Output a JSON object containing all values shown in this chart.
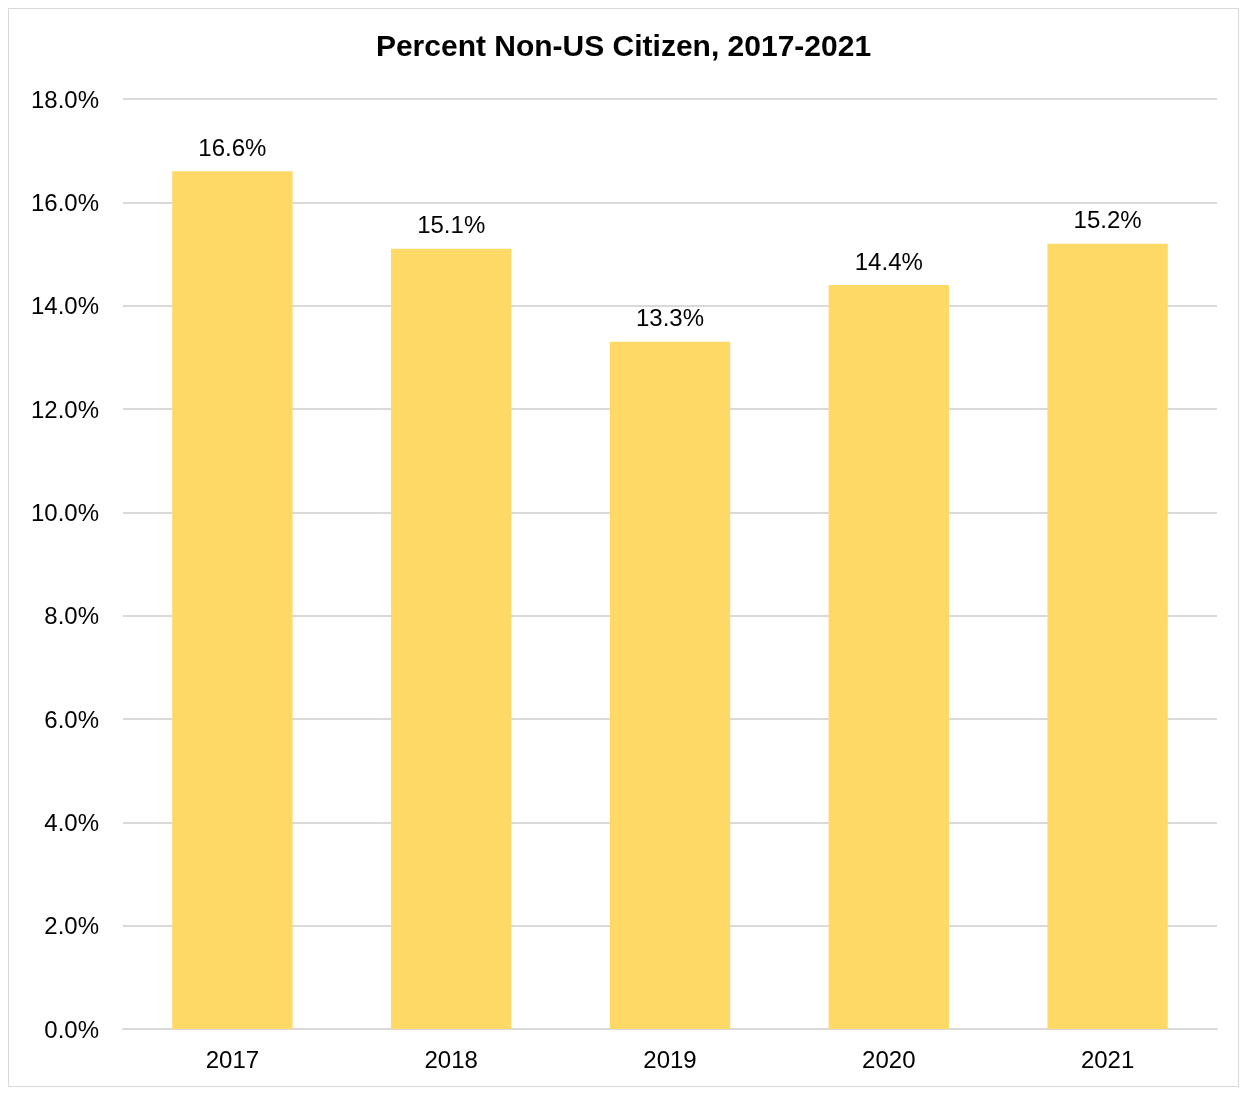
{
  "chart_data": {
    "type": "bar",
    "title": "Percent Non-US Citizen, 2017-2021",
    "categories": [
      "2017",
      "2018",
      "2019",
      "2020",
      "2021"
    ],
    "values": [
      16.6,
      15.1,
      13.3,
      14.4,
      15.2
    ],
    "value_labels": [
      "16.6%",
      "15.1%",
      "13.3%",
      "14.4%",
      "15.2%"
    ],
    "color": "#fed966",
    "ylim": [
      0,
      18
    ],
    "yticks": [
      {
        "value": 0,
        "label": "0.0%"
      },
      {
        "value": 2,
        "label": "2.0%"
      },
      {
        "value": 4,
        "label": "4.0%"
      },
      {
        "value": 6,
        "label": "6.0%"
      },
      {
        "value": 8,
        "label": "8.0%"
      },
      {
        "value": 10,
        "label": "10.0%"
      },
      {
        "value": 12,
        "label": "12.0%"
      },
      {
        "value": 14,
        "label": "14.0%"
      },
      {
        "value": 16,
        "label": "16.0%"
      },
      {
        "value": 18,
        "label": "18.0%"
      }
    ],
    "grid": "y"
  }
}
